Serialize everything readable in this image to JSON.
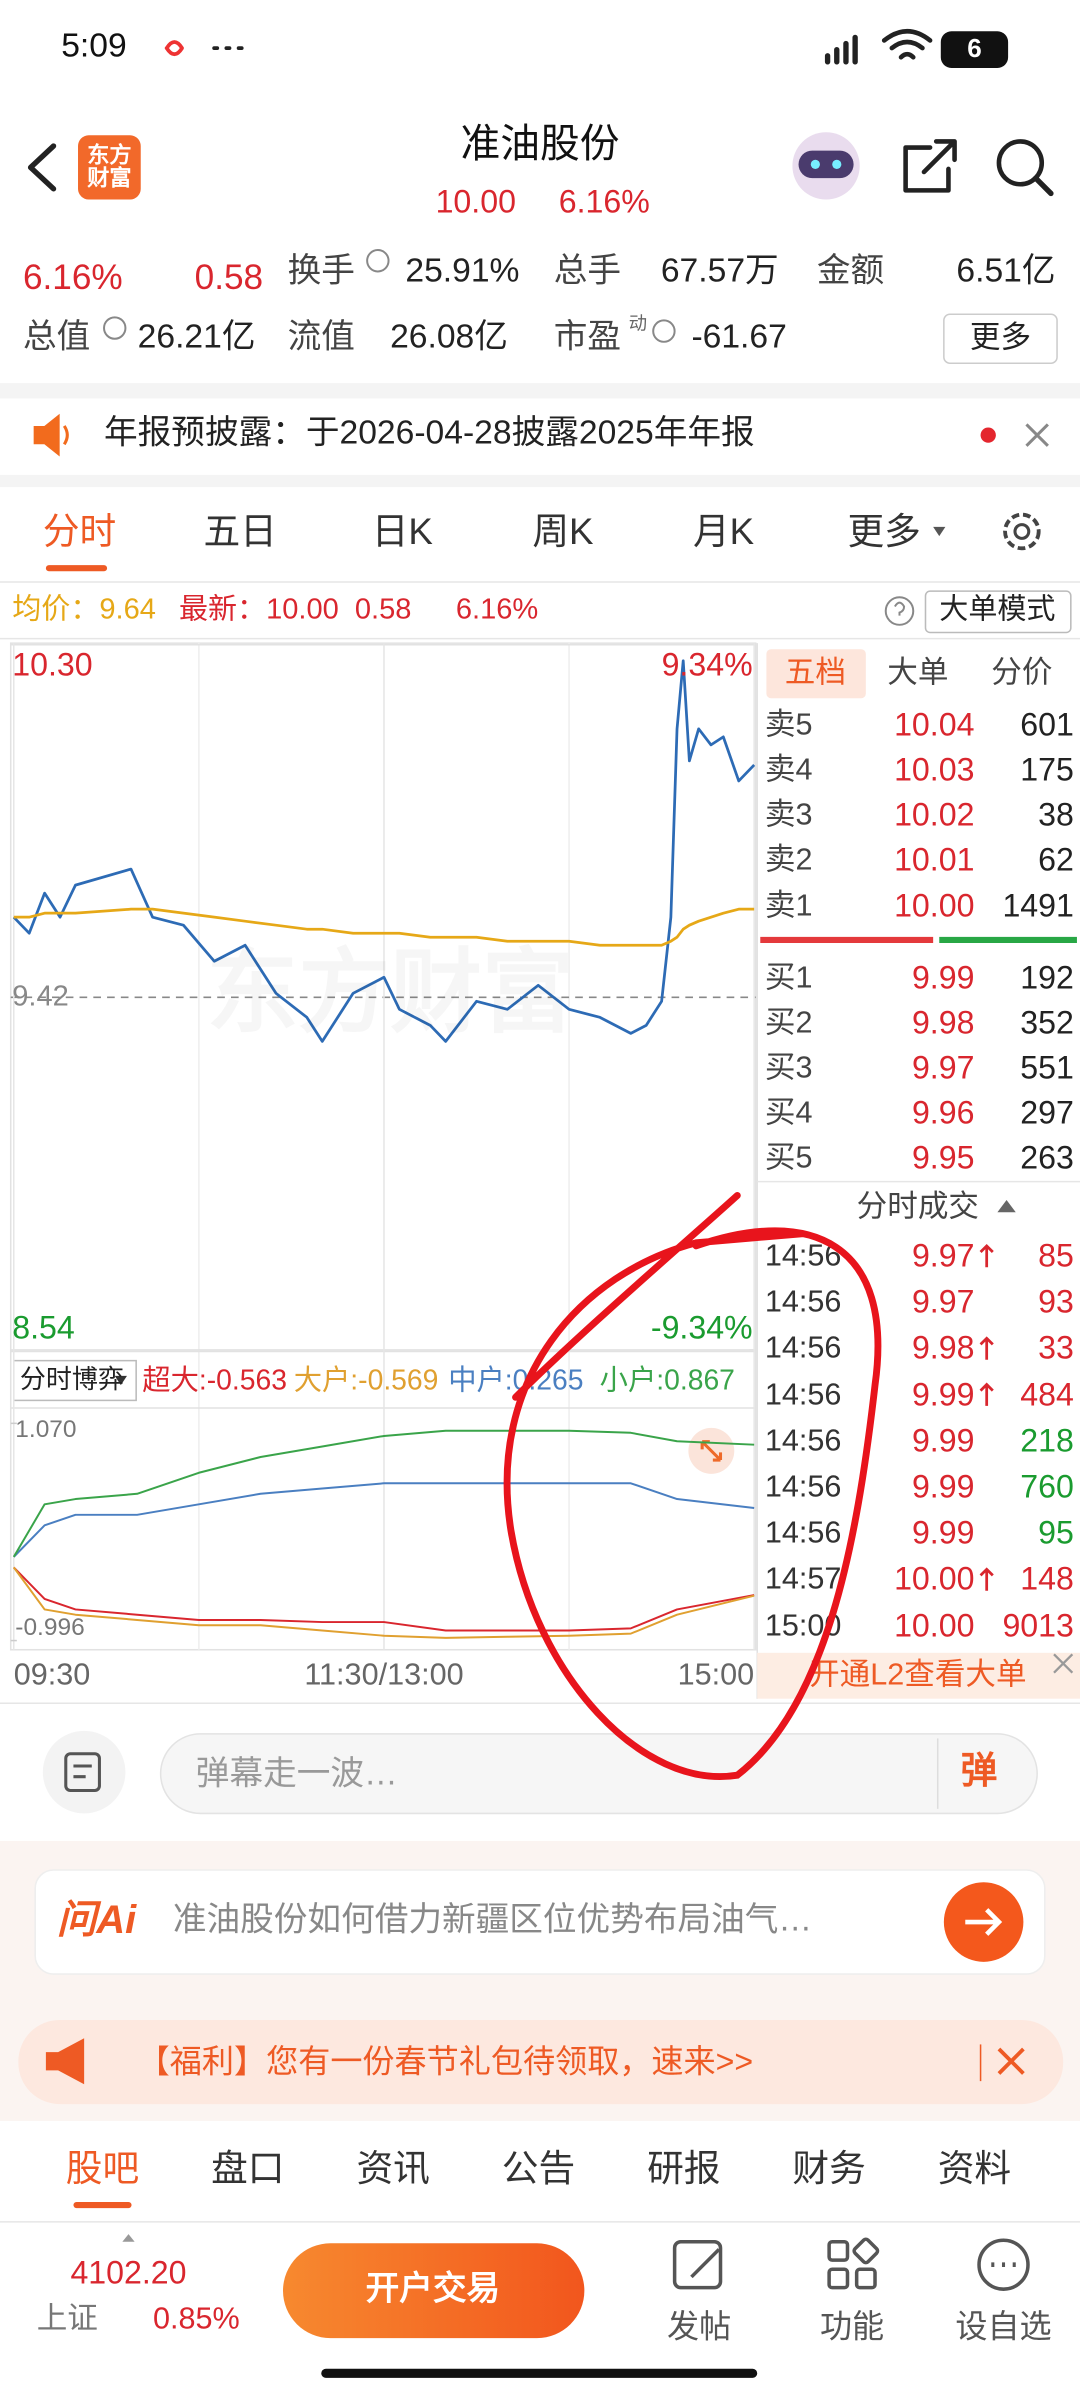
{
  "status": {
    "time": "5:09",
    "battery": "6"
  },
  "header": {
    "logo": "东方财富",
    "title": "准油股份",
    "price": "10.00",
    "change": "6.16%",
    "watermark": "东方财富"
  },
  "quote": {
    "change_pct": "6.16%",
    "change": "0.58",
    "items": [
      {
        "label": "换手",
        "value": "25.91%"
      },
      {
        "label": "总手",
        "value": "67.57万"
      },
      {
        "label": "金额",
        "value": "6.51亿"
      },
      {
        "label": "总值",
        "value": "26.21亿"
      },
      {
        "label": "流值",
        "value": "26.08亿"
      },
      {
        "label": "市盈",
        "sup": "动",
        "value": "-61.67"
      }
    ],
    "more": "更多"
  },
  "notice": "年报预披露：于2026-04-28披露2025年年报",
  "tabs": [
    "分时",
    "五日",
    "日K",
    "周K",
    "月K",
    "更多"
  ],
  "info": {
    "avg": "均价：9.64",
    "last": "最新：10.00",
    "change": "0.58",
    "pct": "6.16%",
    "mode": "大单模式"
  },
  "chart_data": [
    {
      "type": "line",
      "x": [
        0,
        5,
        10,
        15,
        20,
        38,
        45,
        55,
        65,
        75,
        85,
        95,
        100,
        110,
        120,
        125,
        135,
        140,
        150,
        160,
        170,
        180,
        190,
        200,
        205,
        210,
        213,
        215,
        217,
        219,
        222,
        226,
        230,
        235,
        240
      ],
      "xlim": [
        0,
        240
      ],
      "xticks": [
        {
          "value": 0,
          "label": "09:30"
        },
        {
          "value": 120,
          "label": "11:30/13:00"
        },
        {
          "value": 240,
          "label": "15:00"
        }
      ],
      "ylim": [
        8.54,
        10.3
      ],
      "yticks": [
        {
          "value": 10.3,
          "label": "10.30"
        },
        9.42,
        8.54
      ],
      "y2lim": [
        -9.34,
        9.34
      ],
      "y2ticks": [
        {
          "value": 9.34,
          "label": "9.34%"
        },
        {
          "value": -9.34,
          "label": "-9.34%"
        }
      ],
      "grid": true,
      "series": [
        {
          "color": "#2d6bb5",
          "values": [
            9.62,
            9.58,
            9.68,
            9.62,
            9.7,
            9.74,
            9.62,
            9.6,
            9.51,
            9.55,
            9.43,
            9.37,
            9.31,
            9.43,
            9.47,
            9.39,
            9.35,
            9.31,
            9.41,
            9.39,
            9.45,
            9.39,
            9.37,
            9.33,
            9.35,
            9.41,
            9.62,
            10.09,
            10.26,
            10.01,
            10.09,
            10.05,
            10.07,
            9.96,
            10.0
          ]
        },
        {
          "color": "#e6a817",
          "values": [
            9.62,
            9.62,
            9.63,
            9.63,
            9.63,
            9.64,
            9.64,
            9.63,
            9.62,
            9.61,
            9.6,
            9.59,
            9.59,
            9.58,
            9.58,
            9.58,
            9.57,
            9.57,
            9.57,
            9.56,
            9.56,
            9.56,
            9.55,
            9.55,
            9.55,
            9.55,
            9.56,
            9.57,
            9.59,
            9.6,
            9.61,
            9.62,
            9.63,
            9.64,
            9.64
          ]
        }
      ]
    },
    {
      "type": "line",
      "title": "分时博弈",
      "x": [
        0,
        10,
        20,
        40,
        60,
        80,
        100,
        120,
        140,
        160,
        180,
        200,
        215,
        240
      ],
      "xlim": [
        0,
        240
      ],
      "ylim": [
        -0.996,
        1.07
      ],
      "yticks": [
        {
          "value": 1.07,
          "label": "1.070"
        },
        -0.996
      ],
      "series": [
        {
          "name": "超大:-0.563",
          "color": "#d9262e",
          "values": [
            -0.3,
            -0.6,
            -0.7,
            -0.75,
            -0.8,
            -0.8,
            -0.82,
            -0.82,
            -0.9,
            -0.9,
            -0.9,
            -0.88,
            -0.7,
            -0.563
          ]
        },
        {
          "name": "大户:-0.569",
          "color": "#e0a030",
          "values": [
            -0.3,
            -0.7,
            -0.75,
            -0.8,
            -0.85,
            -0.85,
            -0.9,
            -0.95,
            -0.97,
            -0.96,
            -0.95,
            -0.93,
            -0.75,
            -0.569
          ]
        },
        {
          "name": "中户:0.265",
          "color": "#4a7fc1",
          "values": [
            -0.2,
            0.1,
            0.2,
            0.2,
            0.3,
            0.4,
            0.45,
            0.5,
            0.5,
            0.5,
            0.5,
            0.5,
            0.35,
            0.265
          ]
        },
        {
          "name": "小户:0.867",
          "color": "#3aa44a",
          "values": [
            -0.2,
            0.3,
            0.35,
            0.4,
            0.6,
            0.75,
            0.85,
            0.95,
            1.0,
            1.0,
            1.0,
            0.98,
            0.9,
            0.867
          ]
        }
      ]
    }
  ],
  "order_book": {
    "tabs": [
      "五档",
      "大单",
      "分价"
    ],
    "asks": [
      {
        "label": "卖5",
        "price": "10.04",
        "volume": "601"
      },
      {
        "label": "卖4",
        "price": "10.03",
        "volume": "175"
      },
      {
        "label": "卖3",
        "price": "10.02",
        "volume": "38"
      },
      {
        "label": "卖2",
        "price": "10.01",
        "volume": "62"
      },
      {
        "label": "卖1",
        "price": "10.00",
        "volume": "1491"
      }
    ],
    "bids": [
      {
        "label": "买1",
        "price": "9.99",
        "volume": "192"
      },
      {
        "label": "买2",
        "price": "9.98",
        "volume": "352"
      },
      {
        "label": "买3",
        "price": "9.97",
        "volume": "551"
      },
      {
        "label": "买4",
        "price": "9.96",
        "volume": "297"
      },
      {
        "label": "买5",
        "price": "9.95",
        "volume": "263"
      }
    ]
  },
  "trades": {
    "title": "分时成交",
    "rows": [
      {
        "time": "14:56",
        "price": "9.97",
        "volume": "85",
        "side": "buy",
        "up": true
      },
      {
        "time": "14:56",
        "price": "9.97",
        "volume": "93",
        "side": "buy",
        "up": false
      },
      {
        "time": "14:56",
        "price": "9.98",
        "volume": "33",
        "side": "buy",
        "up": true
      },
      {
        "time": "14:56",
        "price": "9.99",
        "volume": "484",
        "side": "buy",
        "up": true
      },
      {
        "time": "14:56",
        "price": "9.99",
        "volume": "218",
        "side": "sell",
        "up": false
      },
      {
        "time": "14:56",
        "price": "9.99",
        "volume": "760",
        "side": "sell",
        "up": false
      },
      {
        "time": "14:56",
        "price": "9.99",
        "volume": "95",
        "side": "sell",
        "up": false
      },
      {
        "time": "14:57",
        "price": "10.00",
        "volume": "148",
        "side": "buy",
        "up": true
      },
      {
        "time": "15:00",
        "price": "10.00",
        "volume": "9013",
        "side": "buy",
        "up": false
      }
    ],
    "footer": "开通L2查看大单"
  },
  "comment": {
    "placeholder": "弹幕走一波…",
    "button": "弹"
  },
  "ai": {
    "logo": "问Ai",
    "text": "准油股份如何借力新疆区位优势布局油气…"
  },
  "promo": "【福利】您有一份春节礼包待领取，速来>>",
  "sections": [
    "股吧",
    "盘口",
    "资讯",
    "公告",
    "研报",
    "财务",
    "资料"
  ],
  "footer": {
    "index": "4102.20",
    "index_name": "上证",
    "index_change": "0.85%",
    "trade": "开户交易",
    "actions": [
      "发帖",
      "功能",
      "设自选"
    ]
  }
}
